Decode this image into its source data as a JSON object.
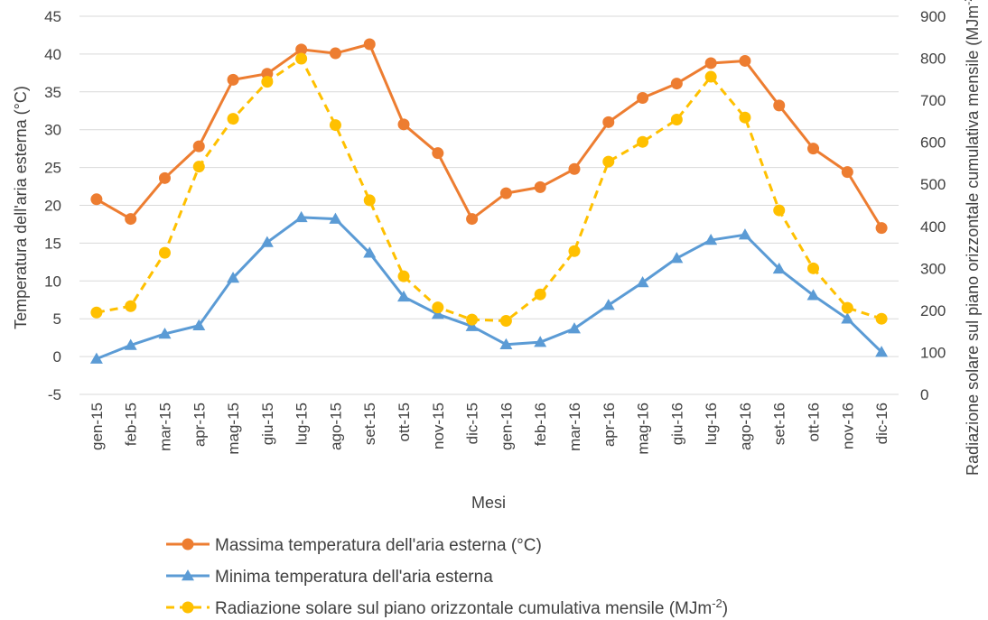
{
  "chart_data": {
    "type": "line",
    "title": "",
    "xlabel": "Mesi",
    "ylabel_left": "Temperatura dell'aria esterna (°C)",
    "ylabel_right": "Radiazione solare sul piano orizzontale cumulativa mensile (MJm⁻²)",
    "ylim_left": [
      -5,
      45
    ],
    "yticks_left": [
      "-5",
      "0",
      "5",
      "10",
      "15",
      "20",
      "25",
      "30",
      "35",
      "40",
      "45"
    ],
    "ylim_right": [
      0,
      900
    ],
    "yticks_right": [
      "0",
      "100",
      "200",
      "300",
      "400",
      "500",
      "600",
      "700",
      "800",
      "900"
    ],
    "grid": true,
    "legend_position": "bottom",
    "categories": [
      "gen-15",
      "feb-15",
      "mar-15",
      "apr-15",
      "mag-15",
      "giu-15",
      "lug-15",
      "ago-15",
      "set-15",
      "ott-15",
      "nov-15",
      "dic-15",
      "gen-16",
      "feb-16",
      "mar-16",
      "apr-16",
      "mag-16",
      "giu-16",
      "lug-16",
      "ago-16",
      "set-16",
      "ott-16",
      "nov-16",
      "dic-16"
    ],
    "series": [
      {
        "name": "Massima temperatura dell'aria esterna (°C)",
        "axis": "left",
        "color": "#ed7d31",
        "marker": "circle",
        "dash": false,
        "values": [
          20.8,
          18.2,
          23.6,
          27.8,
          36.6,
          37.4,
          40.6,
          40.1,
          41.3,
          30.7,
          26.9,
          18.2,
          21.6,
          22.4,
          24.8,
          31.0,
          34.2,
          36.1,
          38.8,
          39.1,
          33.2,
          27.5,
          24.4,
          17.0
        ]
      },
      {
        "name": "Minima temperatura dell'aria esterna",
        "axis": "left",
        "color": "#5b9bd5",
        "marker": "triangle",
        "dash": false,
        "values": [
          -0.3,
          1.5,
          3.0,
          4.1,
          10.4,
          15.1,
          18.4,
          18.2,
          13.7,
          7.9,
          5.6,
          4.0,
          1.6,
          1.9,
          3.7,
          6.8,
          9.8,
          13.0,
          15.4,
          16.1,
          11.6,
          8.1,
          5.0,
          0.6
        ]
      },
      {
        "name": "Radiazione solare sul piano orizzontale cumulativa mensile (MJm⁻²)",
        "axis": "right",
        "color": "#ffc000",
        "marker": "circle",
        "dash": true,
        "values": [
          195,
          210,
          337,
          542,
          656,
          744,
          799,
          641,
          462,
          281,
          207,
          178,
          175,
          238,
          341,
          554,
          601,
          654,
          756,
          659,
          438,
          300,
          206,
          180
        ]
      }
    ]
  }
}
